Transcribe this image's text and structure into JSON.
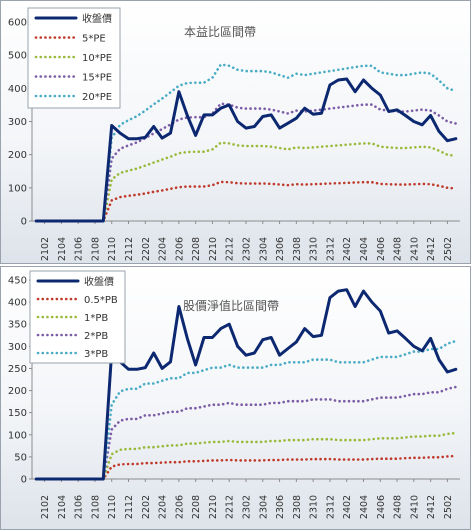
{
  "chart_data": [
    {
      "type": "line",
      "title": "本益比區間帶",
      "xlabel": "",
      "ylabel": "",
      "ylim": [
        0,
        600
      ],
      "yticks": [
        0,
        100,
        200,
        300,
        400,
        500,
        600
      ],
      "grid": false,
      "legend_position": "top-left",
      "x": [
        "2101",
        "2102",
        "2103",
        "2104",
        "2105",
        "2106",
        "2107",
        "2108",
        "2109",
        "2110",
        "2111",
        "2112",
        "2201",
        "2202",
        "2203",
        "2204",
        "2205",
        "2206",
        "2207",
        "2208",
        "2209",
        "2210",
        "2211",
        "2212",
        "2301",
        "2302",
        "2303",
        "2304",
        "2305",
        "2306",
        "2307",
        "2308",
        "2309",
        "2310",
        "2311",
        "2312",
        "2401",
        "2402",
        "2403",
        "2404",
        "2405",
        "2406",
        "2407",
        "2408",
        "2409",
        "2410",
        "2411",
        "2412",
        "2501",
        "2502",
        "2503"
      ],
      "x_tick_labels": [
        "2102",
        "2104",
        "2106",
        "2108",
        "2110",
        "2112",
        "2202",
        "2204",
        "2206",
        "2208",
        "2210",
        "2212",
        "2302",
        "2304",
        "2306",
        "2308",
        "2310",
        "2312",
        "2402",
        "2404",
        "2406",
        "2408",
        "2410",
        "2412",
        "2502"
      ],
      "series": [
        {
          "name": "收盤價",
          "color": "#0c2870",
          "style": "solid",
          "values": [
            0,
            0,
            0,
            0,
            0,
            0,
            0,
            0,
            0,
            288,
            265,
            248,
            248,
            252,
            285,
            250,
            265,
            390,
            318,
            258,
            320,
            320,
            340,
            350,
            300,
            280,
            285,
            315,
            320,
            280,
            295,
            310,
            340,
            322,
            325,
            410,
            425,
            428,
            390,
            425,
            400,
            380,
            330,
            335,
            318,
            300,
            290,
            318,
            270,
            242,
            248
          ]
        },
        {
          "name": "5*PE",
          "color": "#c0392b",
          "style": "dotted",
          "values": [
            0,
            0,
            0,
            0,
            0,
            0,
            0,
            0,
            0,
            62,
            72,
            76,
            79,
            83,
            88,
            92,
            97,
            102,
            104,
            104,
            104,
            108,
            118,
            117,
            114,
            113,
            113,
            113,
            112,
            110,
            108,
            111,
            110,
            111,
            112,
            113,
            114,
            115,
            116,
            117,
            117,
            112,
            111,
            110,
            110,
            111,
            112,
            111,
            106,
            100,
            98
          ]
        },
        {
          "name": "10*PE",
          "color": "#9aba3c",
          "style": "dotted",
          "values": [
            0,
            0,
            0,
            0,
            0,
            0,
            0,
            0,
            0,
            125,
            145,
            152,
            158,
            167,
            176,
            185,
            194,
            204,
            208,
            209,
            209,
            216,
            236,
            234,
            228,
            226,
            226,
            226,
            224,
            220,
            216,
            222,
            220,
            222,
            224,
            226,
            228,
            230,
            232,
            234,
            234,
            224,
            222,
            220,
            220,
            222,
            224,
            222,
            212,
            200,
            196
          ]
        },
        {
          "name": "15*PE",
          "color": "#7b5ca6",
          "style": "dotted",
          "values": [
            0,
            0,
            0,
            0,
            0,
            0,
            0,
            0,
            0,
            188,
            218,
            228,
            237,
            250,
            264,
            277,
            291,
            306,
            312,
            313,
            313,
            324,
            354,
            351,
            342,
            339,
            339,
            339,
            336,
            330,
            324,
            333,
            330,
            333,
            336,
            339,
            342,
            345,
            348,
            351,
            351,
            336,
            333,
            330,
            330,
            333,
            336,
            333,
            318,
            300,
            294
          ]
        },
        {
          "name": "20*PE",
          "color": "#4bacc6",
          "style": "dotted",
          "values": [
            0,
            0,
            0,
            0,
            0,
            0,
            0,
            0,
            0,
            250,
            290,
            304,
            316,
            333,
            352,
            369,
            388,
            408,
            416,
            417,
            417,
            432,
            472,
            468,
            456,
            452,
            452,
            452,
            448,
            440,
            432,
            444,
            440,
            444,
            448,
            452,
            456,
            460,
            464,
            468,
            468,
            448,
            444,
            440,
            440,
            444,
            448,
            444,
            424,
            400,
            392
          ]
        }
      ]
    },
    {
      "type": "line",
      "title": "股價淨值比區間帶",
      "xlabel": "",
      "ylabel": "",
      "ylim": [
        0,
        450
      ],
      "yticks": [
        0,
        50,
        100,
        150,
        200,
        250,
        300,
        350,
        400,
        450
      ],
      "grid": false,
      "legend_position": "top-left",
      "x": [
        "2101",
        "2102",
        "2103",
        "2104",
        "2105",
        "2106",
        "2107",
        "2108",
        "2109",
        "2110",
        "2111",
        "2112",
        "2201",
        "2202",
        "2203",
        "2204",
        "2205",
        "2206",
        "2207",
        "2208",
        "2209",
        "2210",
        "2211",
        "2212",
        "2301",
        "2302",
        "2303",
        "2304",
        "2305",
        "2306",
        "2307",
        "2308",
        "2309",
        "2310",
        "2311",
        "2312",
        "2401",
        "2402",
        "2403",
        "2404",
        "2405",
        "2406",
        "2407",
        "2408",
        "2409",
        "2410",
        "2411",
        "2412",
        "2501",
        "2502",
        "2503"
      ],
      "x_tick_labels": [
        "2102",
        "2104",
        "2106",
        "2108",
        "2110",
        "2112",
        "2202",
        "2204",
        "2206",
        "2208",
        "2210",
        "2212",
        "2302",
        "2304",
        "2306",
        "2308",
        "2310",
        "2312",
        "2402",
        "2404",
        "2406",
        "2408",
        "2410",
        "2412",
        "2502"
      ],
      "series": [
        {
          "name": "收盤價",
          "color": "#0c2870",
          "style": "solid",
          "values": [
            0,
            0,
            0,
            0,
            0,
            0,
            0,
            0,
            0,
            288,
            265,
            248,
            248,
            252,
            285,
            250,
            265,
            390,
            318,
            258,
            320,
            320,
            340,
            350,
            300,
            280,
            285,
            315,
            320,
            280,
            295,
            310,
            340,
            322,
            325,
            410,
            425,
            428,
            390,
            425,
            400,
            380,
            330,
            335,
            318,
            300,
            290,
            318,
            270,
            242,
            248
          ]
        },
        {
          "name": "0.5*PB",
          "color": "#c0392b",
          "style": "dotted",
          "values": [
            0,
            0,
            0,
            0,
            0,
            0,
            0,
            0,
            0,
            28,
            33,
            34,
            34,
            36,
            36,
            37,
            38,
            38,
            40,
            40,
            41,
            42,
            42,
            43,
            42,
            42,
            42,
            42,
            43,
            43,
            44,
            44,
            44,
            45,
            45,
            45,
            44,
            44,
            44,
            44,
            45,
            46,
            46,
            46,
            47,
            48,
            48,
            49,
            49,
            51,
            52
          ]
        },
        {
          "name": "1*PB",
          "color": "#9aba3c",
          "style": "dotted",
          "values": [
            0,
            0,
            0,
            0,
            0,
            0,
            0,
            0,
            0,
            56,
            66,
            68,
            68,
            72,
            72,
            74,
            76,
            76,
            80,
            80,
            82,
            84,
            84,
            86,
            84,
            84,
            84,
            84,
            86,
            86,
            88,
            88,
            88,
            90,
            90,
            90,
            88,
            88,
            88,
            88,
            90,
            92,
            92,
            92,
            94,
            96,
            96,
            98,
            98,
            102,
            104
          ]
        },
        {
          "name": "2*PB",
          "color": "#7b5ca6",
          "style": "dotted",
          "values": [
            0,
            0,
            0,
            0,
            0,
            0,
            0,
            0,
            0,
            112,
            132,
            136,
            136,
            144,
            144,
            148,
            152,
            152,
            160,
            160,
            164,
            168,
            168,
            172,
            168,
            168,
            168,
            168,
            172,
            172,
            176,
            176,
            176,
            180,
            180,
            180,
            176,
            176,
            176,
            176,
            180,
            184,
            184,
            184,
            188,
            192,
            192,
            196,
            196,
            204,
            208
          ]
        },
        {
          "name": "3*PB",
          "color": "#4bacc6",
          "style": "dotted",
          "values": [
            0,
            0,
            0,
            0,
            0,
            0,
            0,
            0,
            0,
            168,
            198,
            204,
            204,
            216,
            216,
            222,
            228,
            228,
            240,
            240,
            246,
            252,
            252,
            258,
            252,
            252,
            252,
            252,
            258,
            258,
            264,
            264,
            264,
            270,
            270,
            270,
            264,
            264,
            264,
            264,
            270,
            276,
            276,
            276,
            282,
            288,
            288,
            294,
            294,
            306,
            312
          ]
        }
      ]
    }
  ]
}
